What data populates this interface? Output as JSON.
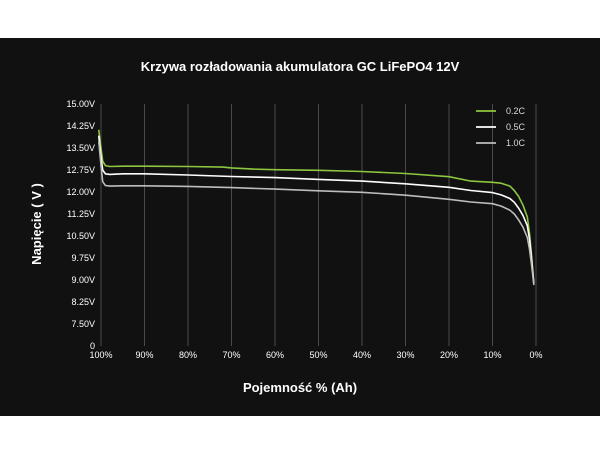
{
  "chart_data": {
    "type": "line",
    "title": "Krzywa rozładowania akumulatora GC LiFePO4 12V",
    "xlabel": "Pojemność % (Ah)",
    "ylabel": "Napięcie ( V )",
    "x_ticks": [
      "100%",
      "90%",
      "80%",
      "70%",
      "60%",
      "50%",
      "40%",
      "30%",
      "20%",
      "10%",
      "0%"
    ],
    "x_tick_values": [
      100,
      90,
      80,
      70,
      60,
      50,
      40,
      30,
      20,
      10,
      0
    ],
    "y_ticks": [
      "0",
      "7.50V",
      "8.25V",
      "9.00V",
      "9.75V",
      "10.50V",
      "11.25V",
      "12.00V",
      "12.75V",
      "13.50V",
      "14.25V",
      "15.00V"
    ],
    "grid": {
      "vertical": true,
      "horizontal": false
    },
    "legend_position": "top-right",
    "series": [
      {
        "name": "0.2C",
        "color": "#8dc63f",
        "x": [
          100.5,
          100,
          99.6,
          99,
          98,
          95,
          90,
          80,
          72,
          70,
          65,
          60,
          50,
          40,
          30,
          20,
          15,
          10,
          8,
          6,
          5,
          4,
          3,
          2,
          1.5,
          1,
          0.5
        ],
        "y": [
          14.1,
          13.5,
          13.05,
          12.9,
          12.87,
          12.88,
          12.88,
          12.87,
          12.85,
          12.82,
          12.78,
          12.76,
          12.74,
          12.7,
          12.63,
          12.52,
          12.37,
          12.33,
          12.3,
          12.2,
          12.05,
          11.85,
          11.55,
          11.15,
          10.6,
          9.8,
          8.9
        ]
      },
      {
        "name": "0.5C",
        "color": "#ffffff",
        "x": [
          100.5,
          100,
          99.6,
          99,
          98,
          95,
          90,
          80,
          70,
          60,
          50,
          40,
          30,
          20,
          15,
          10,
          8,
          6,
          5,
          4,
          3,
          2,
          1.5,
          1,
          0.5
        ],
        "y": [
          13.9,
          13.2,
          12.75,
          12.62,
          12.6,
          12.62,
          12.62,
          12.58,
          12.53,
          12.49,
          12.43,
          12.37,
          12.28,
          12.16,
          12.05,
          11.98,
          11.9,
          11.78,
          11.65,
          11.45,
          11.2,
          10.85,
          10.4,
          9.7,
          8.9
        ]
      },
      {
        "name": "1.0C",
        "color": "#bdbdbd",
        "x": [
          100.5,
          100,
          99.6,
          99,
          98,
          95,
          90,
          80,
          70,
          60,
          50,
          40,
          30,
          20,
          15,
          10,
          8,
          6,
          5,
          4,
          3,
          2,
          1.5,
          1,
          0.5
        ],
        "y": [
          13.7,
          12.9,
          12.35,
          12.22,
          12.2,
          12.21,
          12.21,
          12.19,
          12.15,
          12.1,
          12.04,
          11.99,
          11.89,
          11.75,
          11.66,
          11.6,
          11.52,
          11.38,
          11.25,
          11.05,
          10.8,
          10.45,
          10.05,
          9.5,
          8.85
        ]
      }
    ]
  }
}
